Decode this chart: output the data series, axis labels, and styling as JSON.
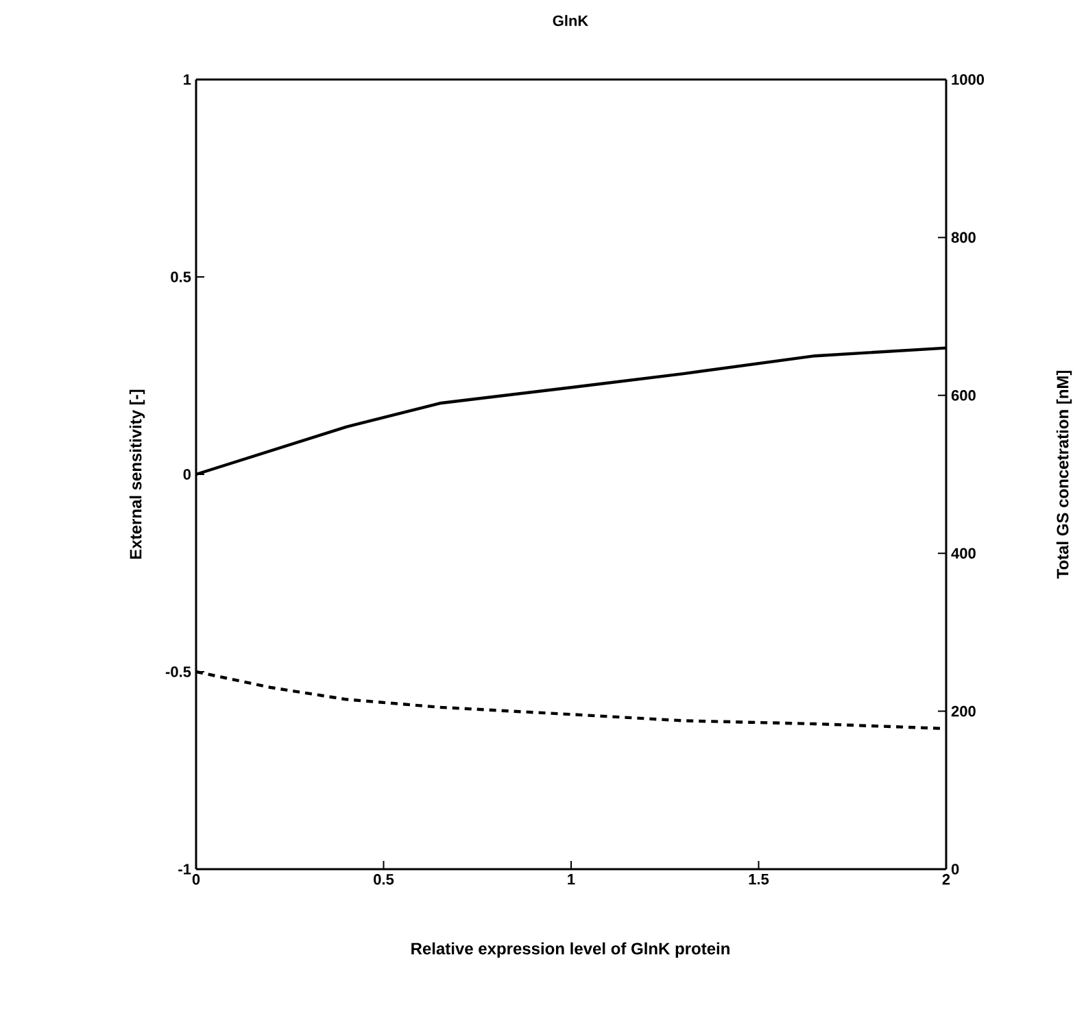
{
  "chart_data": {
    "type": "line",
    "title": "GlnK",
    "xlabel": "Relative expression level of GlnK protein",
    "ylabel": "External sensitivity [-]",
    "y2label": "Total GS concetration [nM]",
    "xlim": [
      0,
      2
    ],
    "xticks": [
      0,
      0.5,
      1,
      1.5,
      2
    ],
    "ylim": [
      -1,
      1
    ],
    "yticks": [
      -1,
      -0.5,
      0,
      0.5,
      1
    ],
    "y2lim": [
      0,
      1000
    ],
    "y2ticks": [
      0,
      200,
      400,
      600,
      800,
      1000
    ],
    "x": [
      0,
      0.2,
      0.4,
      0.65,
      1,
      1.3,
      1.65,
      2
    ],
    "series": [
      {
        "color": "#000000",
        "line_style": "solid",
        "values": [
          0,
          0.06,
          0.12,
          0.18,
          0.22,
          0.255,
          0.3,
          0.32
        ]
      },
      {
        "color": "#000000",
        "line_style": "dashed",
        "axis": "y2",
        "values": [
          250,
          230,
          215,
          205,
          196,
          188,
          184,
          178
        ]
      }
    ]
  }
}
